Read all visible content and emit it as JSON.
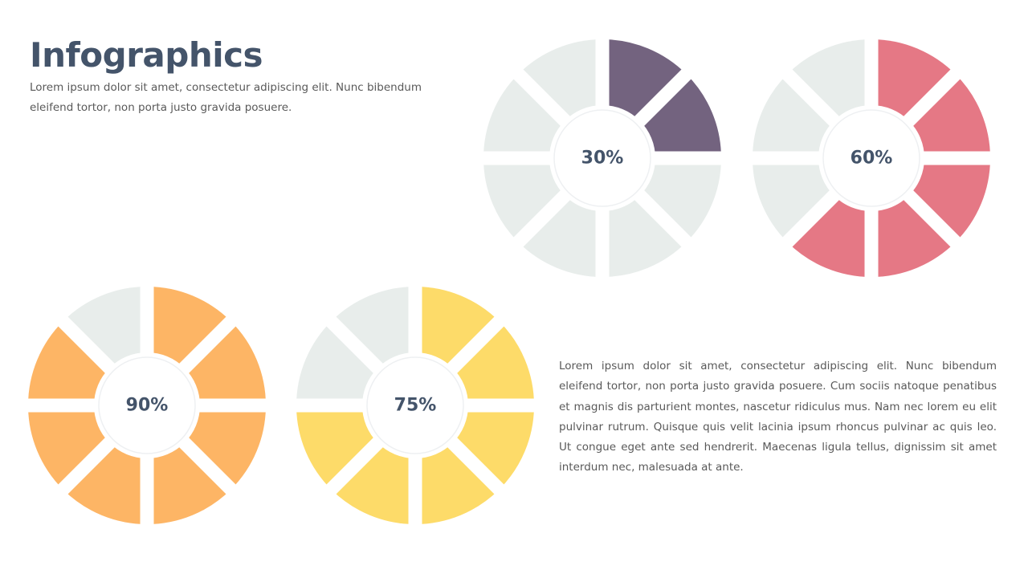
{
  "header": {
    "title": "Infographics",
    "subtitle": "Lorem ipsum dolor sit amet, consectetur adipiscing elit. Nunc bibendum eleifend tortor, non porta justo gravida posuere."
  },
  "body_text": "Lorem ipsum dolor sit amet, consectetur adipiscing elit. Nunc bibendum eleifend tortor, non porta justo gravida posuere. Cum sociis natoque penatibus et magnis dis parturient montes, nascetur ridiculus mus. Nam nec lorem eu elit pulvinar rutrum. Quisque quis velit lacinia ipsum rhoncus pulvinar ac quis leo. Ut congue eget ante sed hendrerit. Maecenas ligula tellus, dignissim sit amet interdum nec, malesuada at ante.",
  "colors": {
    "empty_segment": "#e8edeb",
    "title_text": "#44546a"
  },
  "chart_data": [
    {
      "type": "pie",
      "label": "30%",
      "value": 30,
      "filled_segments": 2,
      "total_segments": 8,
      "color": "#73637f"
    },
    {
      "type": "pie",
      "label": "60%",
      "value": 60,
      "filled_segments": 5,
      "total_segments": 8,
      "color": "#e57885"
    },
    {
      "type": "pie",
      "label": "90%",
      "value": 90,
      "filled_segments": 7,
      "total_segments": 8,
      "color": "#fdb565"
    },
    {
      "type": "pie",
      "label": "75%",
      "value": 75,
      "filled_segments": 6,
      "total_segments": 8,
      "color": "#fddb69"
    }
  ]
}
